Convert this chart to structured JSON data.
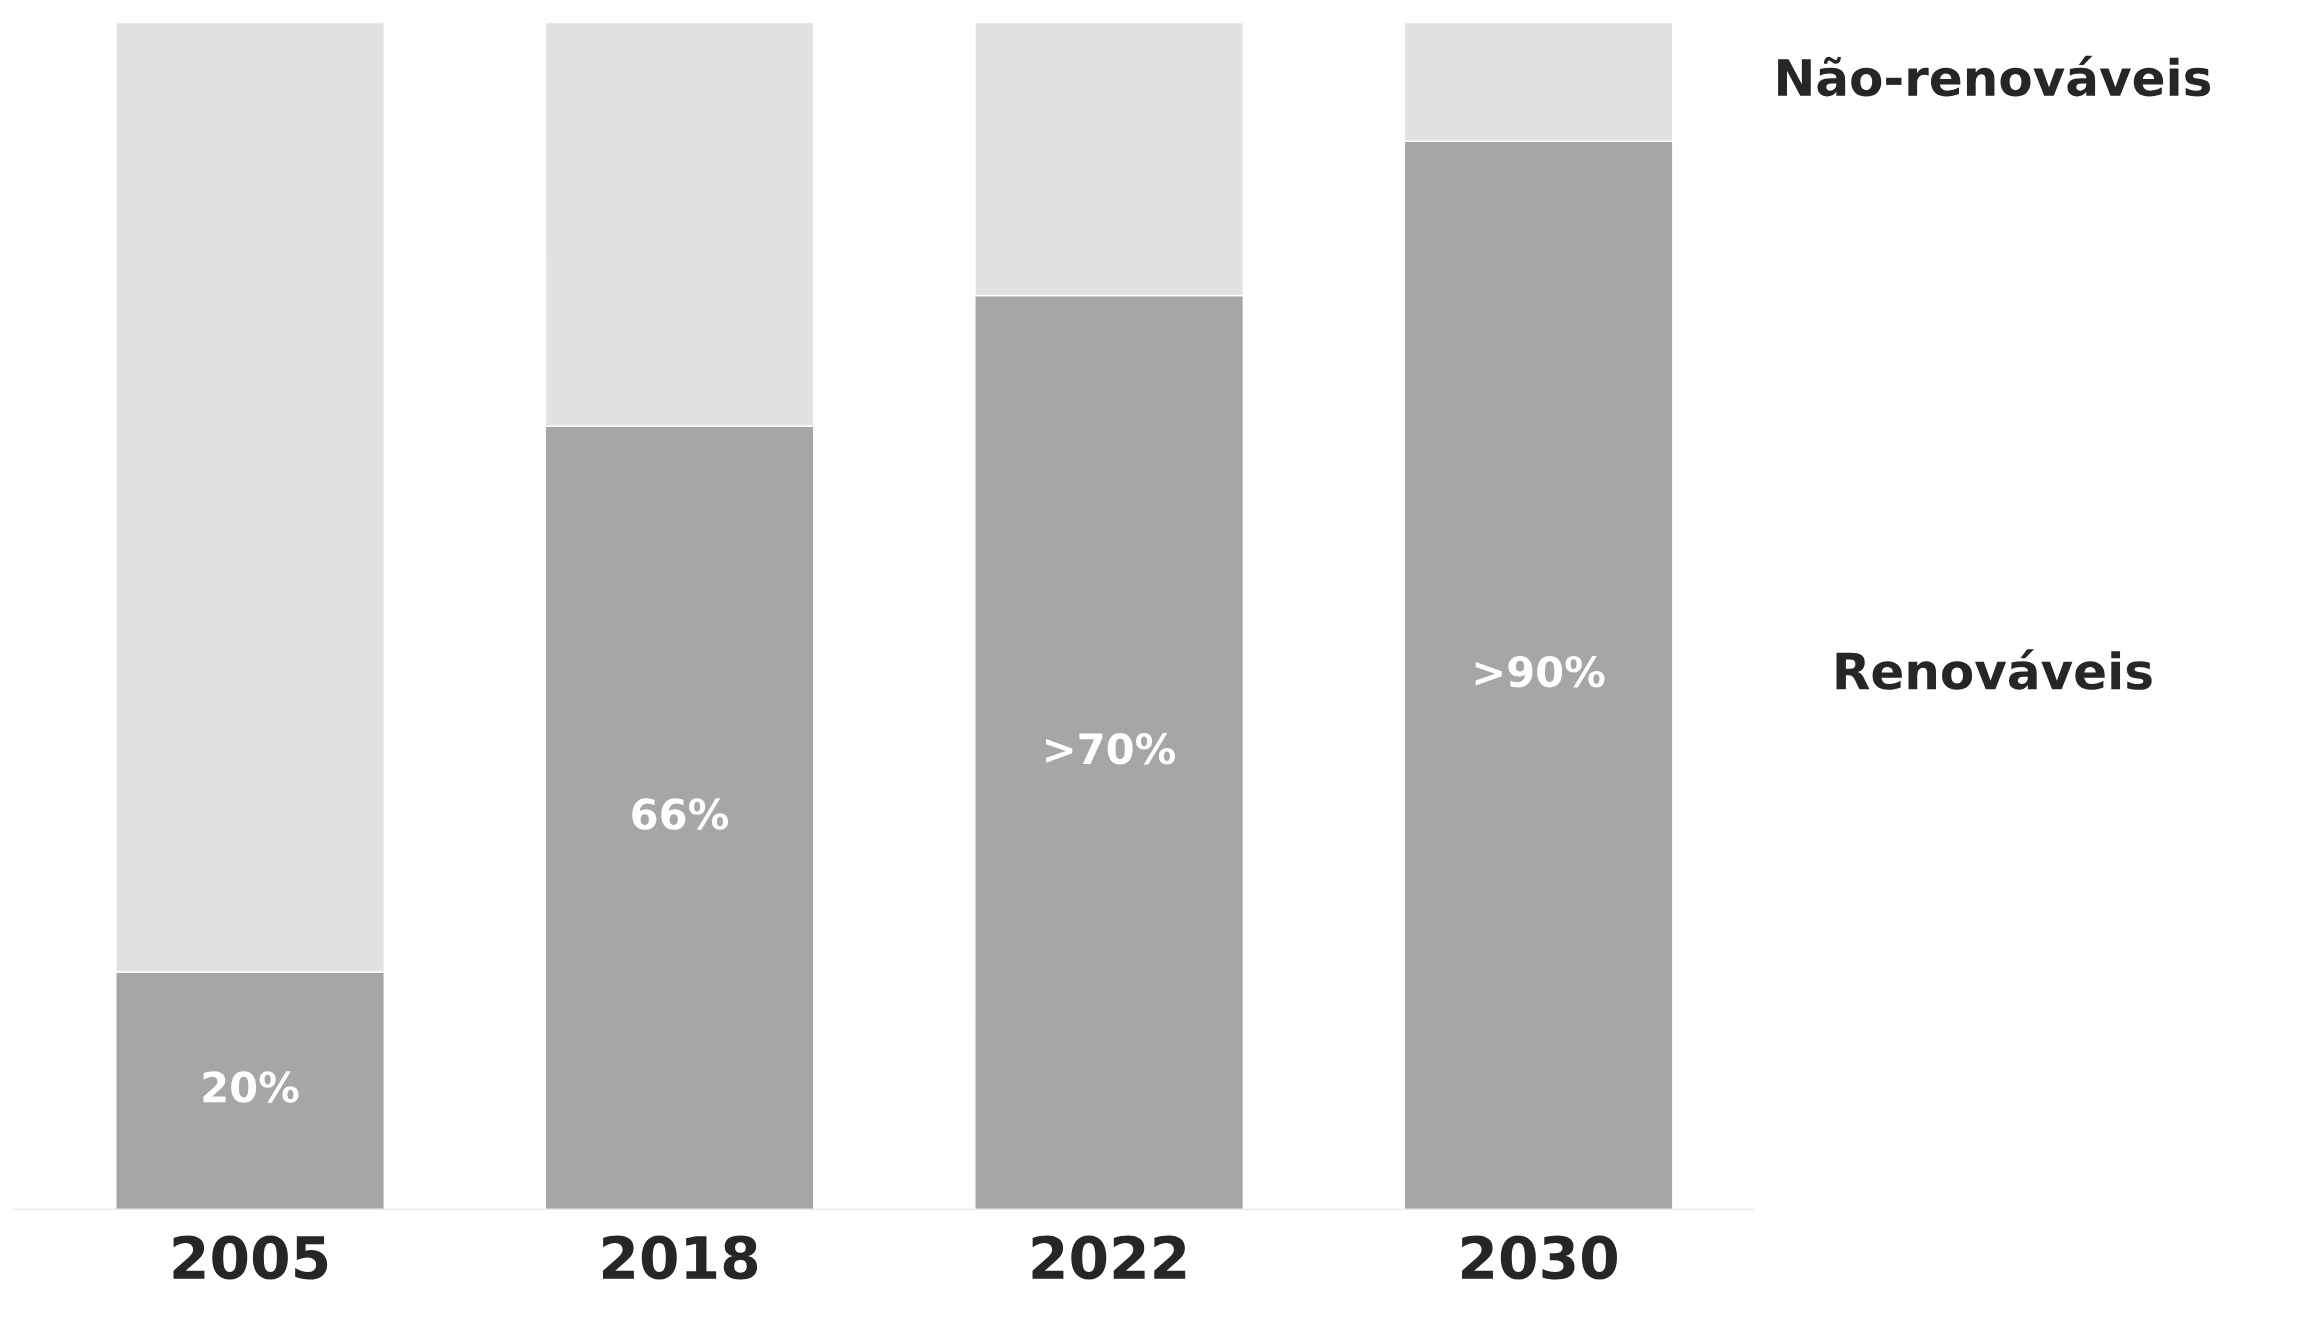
{
  "chart_data": {
    "type": "bar",
    "stacked": true,
    "categories": [
      "2005",
      "2018",
      "2022",
      "2030"
    ],
    "series": [
      {
        "name": "Renováveis",
        "color": "#a6a6a6",
        "values": [
          20,
          66,
          77,
          90
        ],
        "value_labels": [
          "20%",
          "66%",
          ">70%",
          ">90%"
        ]
      },
      {
        "name": "Não-renováveis",
        "color": "#e2e2e2",
        "values": [
          80,
          34,
          23,
          10
        ]
      }
    ],
    "ylim": [
      0,
      100
    ],
    "tick_labels": "x",
    "legend": false,
    "grid": false
  }
}
